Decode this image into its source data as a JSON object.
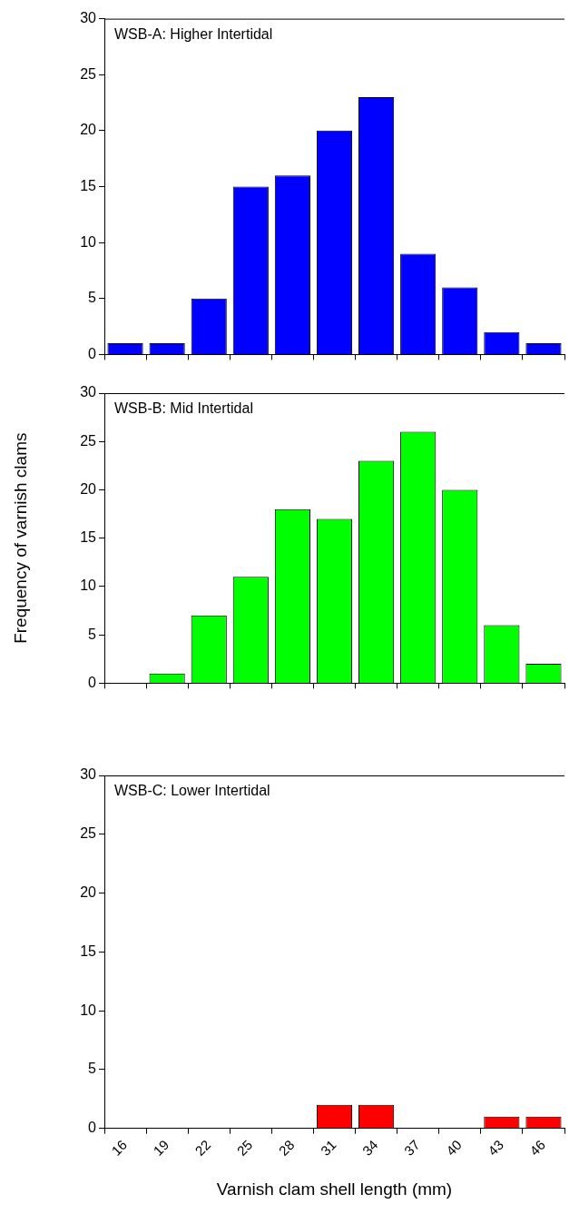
{
  "chart_data": [
    {
      "type": "bar",
      "title": "WSB-A: Higher Intertidal",
      "categories": [
        "16",
        "19",
        "22",
        "25",
        "28",
        "31",
        "34",
        "37",
        "40",
        "43",
        "46"
      ],
      "values": [
        1,
        1,
        5,
        15,
        16,
        20,
        23,
        9,
        6,
        2,
        1
      ],
      "color": "#0000ff",
      "ylim": [
        0,
        30
      ],
      "yticks": [
        0,
        5,
        10,
        15,
        20,
        25,
        30
      ],
      "tick_labels": "y"
    },
    {
      "type": "bar",
      "title": "WSB-B: Mid Intertidal",
      "ylabel": "Frequency of varnish clams",
      "categories": [
        "16",
        "19",
        "22",
        "25",
        "28",
        "31",
        "34",
        "37",
        "40",
        "43",
        "46"
      ],
      "values": [
        0,
        1,
        7,
        11,
        18,
        17,
        23,
        26,
        20,
        6,
        2
      ],
      "color": "#00ff00",
      "ylim": [
        0,
        30
      ],
      "yticks": [
        0,
        5,
        10,
        15,
        20,
        25,
        30
      ],
      "tick_labels": "y"
    },
    {
      "type": "bar",
      "title": "WSB-C: Lower Intertidal",
      "xlabel": "Varnish clam shell length (mm)",
      "categories": [
        "16",
        "19",
        "22",
        "25",
        "28",
        "31",
        "34",
        "37",
        "40",
        "43",
        "46"
      ],
      "values": [
        0,
        0,
        0,
        0,
        0,
        2,
        2,
        0,
        0,
        1,
        1
      ],
      "color": "#ff0000",
      "ylim": [
        0,
        30
      ],
      "yticks": [
        0,
        5,
        10,
        15,
        20,
        25,
        30
      ]
    }
  ]
}
